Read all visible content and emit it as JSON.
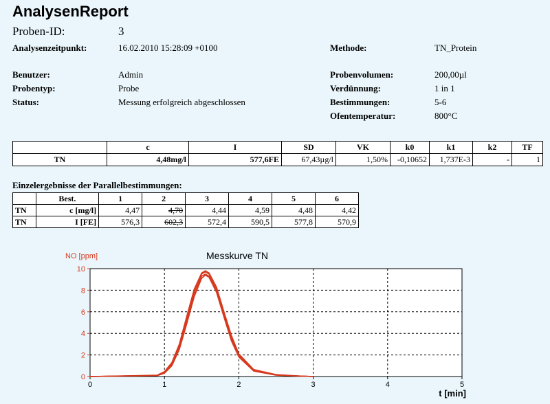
{
  "report": {
    "title": "AnalysenReport"
  },
  "info": {
    "probe_id_label": "Proben-ID:",
    "probe_id": "3",
    "zeit_label": "Analysenzeitpunkt:",
    "zeit": "16.02.2010 15:28:09 +0100",
    "methode_label": "Methode:",
    "methode": "TN_Protein",
    "benutzer_label": "Benutzer:",
    "benutzer": "Admin",
    "probenvolumen_label": "Probenvolumen:",
    "probenvolumen": "200,00µl",
    "probentyp_label": "Probentyp:",
    "probentyp": "Probe",
    "verduennung_label": "Verdünnung:",
    "verduennung": "1 in 1",
    "status_label": "Status:",
    "status": "Messung erfolgreich abgeschlossen",
    "bestimmungen_label": "Bestimmungen:",
    "bestimmungen": "5-6",
    "ofentemp_label": "Ofentemperatur:",
    "ofentemp": "800°C"
  },
  "summary": {
    "headers": [
      "",
      "c",
      "I",
      "SD",
      "VK",
      "k0",
      "k1",
      "k2",
      "TF"
    ],
    "row": [
      "TN",
      "4,48mg/l",
      "577,6FE",
      "67,43µg/l",
      "1,50%",
      "-0,10652",
      "1,737E-3",
      "-",
      "1"
    ]
  },
  "single": {
    "title": "Einzelergebnisse der Parallelbestimmungen:",
    "best_label": "Best.",
    "cols": [
      "1",
      "2",
      "3",
      "4",
      "5",
      "6"
    ],
    "rows": [
      {
        "param": "TN",
        "unit": "c [mg/l]",
        "values": [
          "4,47",
          "4,70",
          "4,44",
          "4,59",
          "4,48",
          "4,42"
        ],
        "struck": [
          false,
          true,
          false,
          false,
          false,
          false
        ]
      },
      {
        "param": "TN",
        "unit": "I [FE]",
        "values": [
          "576,3",
          "602,3",
          "572,4",
          "590,5",
          "577,8",
          "570,9"
        ],
        "struck": [
          false,
          true,
          false,
          false,
          false,
          false
        ]
      }
    ]
  },
  "chart_data": {
    "type": "line",
    "title": "Messkurve TN",
    "ylabel": "NO [ppm]",
    "xlabel": "t [min]",
    "xlim": [
      0,
      5
    ],
    "ylim": [
      0,
      10
    ],
    "xticks": [
      0,
      1,
      2,
      3,
      4,
      5
    ],
    "yticks": [
      0,
      2,
      4,
      6,
      8,
      10
    ],
    "grid": true,
    "series_color": "#d63a1e",
    "series": [
      {
        "peak_x": 1.55,
        "peak_y": 9.7,
        "x": [
          0,
          0.9,
          1.0,
          1.1,
          1.2,
          1.3,
          1.4,
          1.5,
          1.55,
          1.6,
          1.7,
          1.8,
          1.9,
          2.0,
          2.2,
          2.5,
          2.8,
          3.0
        ],
        "y": [
          0,
          0.1,
          0.4,
          1.2,
          2.9,
          5.4,
          7.9,
          9.5,
          9.7,
          9.5,
          8.1,
          5.8,
          3.6,
          2.0,
          0.6,
          0.15,
          0.05,
          0
        ]
      },
      {
        "x": [
          0,
          0.9,
          1.0,
          1.1,
          1.2,
          1.3,
          1.4,
          1.5,
          1.55,
          1.6,
          1.7,
          1.8,
          1.9,
          2.0,
          2.2,
          2.5,
          2.8,
          3.0
        ],
        "y": [
          0,
          0.1,
          0.35,
          1.1,
          2.7,
          5.1,
          7.6,
          9.3,
          9.5,
          9.3,
          7.9,
          5.6,
          3.4,
          1.9,
          0.55,
          0.15,
          0.05,
          0
        ]
      },
      {
        "x": [
          0,
          0.9,
          1.0,
          1.1,
          1.2,
          1.3,
          1.4,
          1.5,
          1.55,
          1.6,
          1.7,
          1.8,
          1.9,
          2.0,
          2.2,
          2.5,
          2.8,
          3.0
        ],
        "y": [
          0,
          0.12,
          0.45,
          1.3,
          3.0,
          5.6,
          8.1,
          9.6,
          9.8,
          9.6,
          8.3,
          6.0,
          3.8,
          2.1,
          0.65,
          0.18,
          0.05,
          0
        ]
      },
      {
        "x": [
          0,
          0.9,
          1.0,
          1.1,
          1.2,
          1.3,
          1.4,
          1.5,
          1.55,
          1.6,
          1.7,
          1.8,
          1.9,
          2.0,
          2.2,
          2.5,
          2.8,
          3.0
        ],
        "y": [
          0,
          0.08,
          0.3,
          1.0,
          2.5,
          4.9,
          7.4,
          9.1,
          9.4,
          9.2,
          7.8,
          5.5,
          3.3,
          1.8,
          0.5,
          0.12,
          0.04,
          0
        ]
      }
    ]
  }
}
